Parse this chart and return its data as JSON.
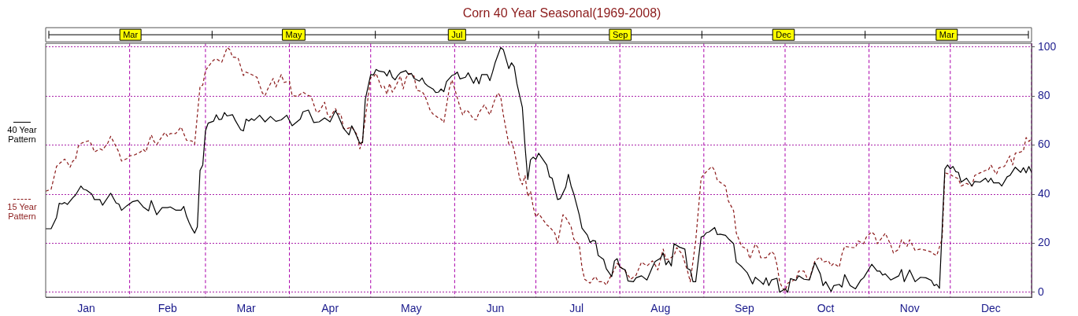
{
  "chart_data": {
    "type": "line",
    "title": "Corn 40 Year Seasonal(1969-2008)",
    "xlim": [
      "--01-01",
      "--12-31"
    ],
    "ylim": [
      -2,
      101.5
    ],
    "xticks": [
      {
        "value": "--01-16",
        "label": "Jan"
      },
      {
        "value": "--02-15",
        "label": "Feb"
      },
      {
        "value": "--03-16",
        "label": "Mar"
      },
      {
        "value": "--04-16",
        "label": "Apr"
      },
      {
        "value": "--05-16",
        "label": "May"
      },
      {
        "value": "--06-16",
        "label": "Jun"
      },
      {
        "value": "--07-16",
        "label": "Jul"
      },
      {
        "value": "--08-16",
        "label": "Aug"
      },
      {
        "value": "--09-16",
        "label": "Sep"
      },
      {
        "value": "--10-16",
        "label": "Oct"
      },
      {
        "value": "--11-16",
        "label": "Nov"
      },
      {
        "value": "--12-16",
        "label": "Dec"
      }
    ],
    "annotations": [
      "Mar",
      "May",
      "Jul",
      "Sep",
      "Dec",
      "Mar"
    ],
    "yticks": [
      0,
      20,
      40,
      60,
      80,
      100
    ],
    "grid": "y",
    "legend": "left",
    "marker": "none",
    "ref_lines": [
      {
        "axis": "x",
        "value": "--02-01",
        "color": "#aa00aa",
        "line_style": "dashed"
      },
      {
        "axis": "x",
        "value": "--03-01",
        "color": "#aa00aa",
        "line_style": "dashed"
      },
      {
        "axis": "x",
        "value": "--04-01",
        "color": "#aa00aa",
        "line_style": "dashed"
      },
      {
        "axis": "x",
        "value": "--05-01",
        "color": "#aa00aa",
        "line_style": "dashed"
      },
      {
        "axis": "x",
        "value": "--06-01",
        "color": "#aa00aa",
        "line_style": "dashed"
      },
      {
        "axis": "x",
        "value": "--07-01",
        "color": "#aa00aa",
        "line_style": "dashed"
      },
      {
        "axis": "x",
        "value": "--08-01",
        "color": "#aa00aa",
        "line_style": "dashed"
      },
      {
        "axis": "x",
        "value": "--09-01",
        "color": "#aa00aa",
        "line_style": "dashed"
      },
      {
        "axis": "x",
        "value": "--10-01",
        "color": "#aa00aa",
        "line_style": "dashed"
      },
      {
        "axis": "x",
        "value": "--11-01",
        "color": "#aa00aa",
        "line_style": "dashed"
      },
      {
        "axis": "x",
        "value": "--12-01",
        "color": "#aa00aa",
        "line_style": "dashed"
      },
      {
        "axis": "x",
        "value": "--12-31",
        "color": "#aa00aa",
        "line_style": "dashed"
      }
    ],
    "series": [
      {
        "name": "40 Year Pattern",
        "color": "#000000",
        "line_style": "solid",
        "x": [
          "--01-01",
          "--01-03",
          "--01-05",
          "--01-06",
          "--01-07",
          "--01-08",
          "--01-09",
          "--01-11",
          "--01-12",
          "--01-14",
          "--01-15",
          "--01-16",
          "--01-18",
          "--01-19",
          "--01-21",
          "--01-22",
          "--01-25",
          "--01-27",
          "--01-28",
          "--01-29",
          "--01-31",
          "--02-02",
          "--02-04",
          "--02-06",
          "--02-08",
          "--02-09",
          "--02-11",
          "--02-13",
          "--02-15",
          "--02-16",
          "--02-18",
          "--02-20",
          "--02-21",
          "--02-22",
          "--02-23",
          "--02-24",
          "--02-25",
          "--02-26",
          "--02-27",
          "--02-28",
          "--03-01",
          "--03-02",
          "--03-04",
          "--03-05",
          "--03-06",
          "--03-07",
          "--03-08",
          "--03-09",
          "--03-11",
          "--03-12",
          "--03-14",
          "--03-15",
          "--03-16",
          "--03-17",
          "--03-18",
          "--03-19",
          "--03-21",
          "--03-23",
          "--03-25",
          "--03-27",
          "--03-29",
          "--03-31",
          "--04-02",
          "--04-05",
          "--04-06",
          "--04-08",
          "--04-10",
          "--04-12",
          "--04-14",
          "--04-16",
          "--04-18",
          "--04-19",
          "--04-21",
          "--04-23",
          "--04-24",
          "--04-25",
          "--04-27",
          "--04-28",
          "--04-29",
          "--05-01",
          "--05-02",
          "--05-03",
          "--05-04",
          "--05-06",
          "--05-07",
          "--05-08",
          "--05-09",
          "--05-10",
          "--05-11",
          "--05-12",
          "--05-14",
          "--05-15",
          "--05-16",
          "--05-17",
          "--05-19",
          "--05-20",
          "--05-21",
          "--05-22",
          "--05-24",
          "--05-25",
          "--05-26",
          "--05-27",
          "--05-28",
          "--05-29",
          "--05-31",
          "--06-01",
          "--06-02",
          "--06-03",
          "--06-05",
          "--06-06",
          "--06-08",
          "--06-09",
          "--06-10",
          "--06-11",
          "--06-13",
          "--06-14",
          "--06-15",
          "--06-16",
          "--06-18",
          "--06-19",
          "--06-21",
          "--06-22",
          "--06-23",
          "--06-24",
          "--06-26",
          "--06-27",
          "--06-28",
          "--06-29",
          "--06-30",
          "--07-01",
          "--07-02",
          "--07-05",
          "--07-06",
          "--07-07",
          "--07-09",
          "--07-10",
          "--07-12",
          "--07-13",
          "--07-14",
          "--07-15",
          "--07-17",
          "--07-18",
          "--07-20",
          "--07-21",
          "--07-22",
          "--07-23",
          "--07-24",
          "--07-26",
          "--07-27",
          "--07-29",
          "--07-30",
          "--07-31",
          "--08-01",
          "--08-03",
          "--08-04",
          "--08-06",
          "--08-07",
          "--08-09",
          "--08-11",
          "--08-13",
          "--08-14",
          "--08-16",
          "--08-17",
          "--08-18",
          "--08-19",
          "--08-20",
          "--08-21",
          "--08-23",
          "--08-25",
          "--08-26",
          "--08-27",
          "--08-28",
          "--08-29",
          "--08-31",
          "--09-01",
          "--09-02",
          "--09-03",
          "--09-05",
          "--09-06",
          "--09-07",
          "--09-09",
          "--09-10",
          "--09-12",
          "--09-13",
          "--09-15",
          "--09-17",
          "--09-19",
          "--09-20",
          "--09-22",
          "--09-23",
          "--09-24",
          "--09-25",
          "--09-26",
          "--09-28",
          "--09-29",
          "--10-01",
          "--10-02",
          "--10-03",
          "--10-05",
          "--10-06",
          "--10-08",
          "--10-10",
          "--10-12",
          "--10-14",
          "--10-15",
          "--10-16",
          "--10-18",
          "--10-19",
          "--10-21",
          "--10-22",
          "--10-23",
          "--10-25",
          "--10-27",
          "--10-29",
          "--10-30",
          "--11-02",
          "--11-04",
          "--11-05",
          "--11-06",
          "--11-07",
          "--11-09",
          "--11-12",
          "--11-13",
          "--11-14",
          "--11-16",
          "--11-18",
          "--11-20",
          "--11-22",
          "--11-24",
          "--11-25",
          "--11-26",
          "--11-27",
          "--11-29",
          "--11-30",
          "--12-01",
          "--12-02",
          "--12-03",
          "--12-04",
          "--12-05",
          "--12-07",
          "--12-09",
          "--12-10",
          "--12-12",
          "--12-14",
          "--12-15",
          "--12-16",
          "--12-17",
          "--12-19",
          "--12-20",
          "--12-22",
          "--12-23",
          "--12-25",
          "--12-27",
          "--12-28",
          "--12-29",
          "--12-30",
          "--12-31"
        ],
        "values": [
          25.9,
          25.9,
          30.5,
          36.3,
          36.0,
          36.6,
          35.8,
          38.5,
          39.6,
          43.3,
          42.0,
          41.7,
          40.1,
          37.8,
          37.8,
          35.5,
          40.4,
          36.4,
          36.0,
          33.4,
          35.3,
          36.9,
          37.5,
          34.8,
          33.2,
          37.4,
          31.6,
          34.5,
          34.5,
          34.8,
          33.5,
          33.5,
          35.0,
          31.0,
          28.3,
          26.0,
          24.1,
          26.7,
          49.7,
          51.9,
          65.8,
          69.0,
          69.8,
          72.4,
          70.4,
          70.6,
          73.3,
          71.9,
          72.4,
          70.1,
          66.3,
          65.8,
          70.6,
          69.8,
          70.8,
          70.1,
          72.2,
          69.5,
          71.7,
          69.7,
          70.3,
          72.2,
          67.9,
          70.6,
          73.6,
          74.3,
          69.2,
          69.5,
          71.1,
          69.5,
          74.1,
          72.0,
          66.8,
          64.2,
          67.9,
          65.8,
          60.7,
          61.0,
          78.6,
          88.8,
          88.6,
          90.9,
          90.2,
          89.8,
          88.2,
          90.6,
          87.7,
          86.6,
          88.4,
          89.6,
          90.4,
          88.8,
          89.3,
          87.2,
          86.1,
          87.4,
          85.2,
          84.2,
          82.9,
          81.5,
          81.6,
          82.9,
          81.8,
          85.9,
          88.4,
          88.8,
          89.8,
          87.0,
          87.7,
          89.5,
          85.2,
          87.7,
          85.0,
          88.8,
          88.8,
          86.3,
          89.8,
          93.8,
          99.8,
          98.9,
          91.2,
          93.6,
          92.0,
          85.0,
          75.4,
          59.4,
          46.0,
          54.0,
          55.1,
          54.2,
          56.7,
          51.9,
          47.1,
          46.5,
          37.8,
          38.2,
          42.8,
          48.1,
          43.3,
          40.1,
          31.6,
          26.2,
          23.3,
          20.3,
          21.1,
          20.9,
          15.0,
          13.4,
          9.6,
          6.4,
          12.8,
          13.7,
          10.2,
          9.1,
          4.6,
          4.3,
          5.9,
          6.7,
          5.0,
          10.2,
          12.5,
          13.9,
          16.0,
          11.2,
          12.8,
          10.7,
          19.8,
          18.4,
          17.6,
          9.6,
          9.1,
          4.3,
          4.3,
          22.5,
          23.0,
          24.3,
          24.6,
          26.4,
          23.5,
          23.7,
          23.2,
          21.9,
          19.8,
          12.3,
          10.4,
          8.0,
          3.4,
          6.1,
          4.3,
          3.2,
          5.9,
          2.7,
          5.0,
          5.7,
          0,
          1.4,
          0,
          5.6,
          4.8,
          6.7,
          5.3,
          5.0,
          12.1,
          7.5,
          2.7,
          4.3,
          0.3,
          2.7,
          3.2,
          2.1,
          7.2,
          2.7,
          1.4,
          5.0,
          5.9,
          11.4,
          8.6,
          8.6,
          7.0,
          7.5,
          5.0,
          6.7,
          9.3,
          4.3,
          9.1,
          4.3,
          6.1,
          5.9,
          4.8,
          2.7,
          3.2,
          1.6,
          50.3,
          51.9,
          50.3,
          51.3,
          49.2,
          48.9,
          44.9,
          46.5,
          43.3,
          45.2,
          44.9,
          46.5,
          44.9,
          46.5,
          44.6,
          44.6,
          43.3,
          47.1,
          47.6,
          51.0,
          48.9,
          50.8,
          48.7,
          51.3,
          48.9
        ]
      },
      {
        "name": "15 Year Pattern",
        "color": "#8b1a1a",
        "line_style": "dashed",
        "x": [
          "--01-01",
          "--01-03",
          "--01-04",
          "--01-05",
          "--01-06",
          "--01-08",
          "--01-09",
          "--01-10",
          "--01-11",
          "--01-12",
          "--01-13",
          "--01-14",
          "--01-16",
          "--01-17",
          "--01-18",
          "--01-19",
          "--01-21",
          "--01-22",
          "--01-24",
          "--01-25",
          "--01-27",
          "--01-28",
          "--01-29",
          "--01-31",
          "--02-01",
          "--02-03",
          "--02-05",
          "--02-06",
          "--02-07",
          "--02-08",
          "--02-09",
          "--02-10",
          "--02-11",
          "--02-13",
          "--02-14",
          "--02-15",
          "--02-16",
          "--02-18",
          "--02-20",
          "--02-21",
          "--02-22",
          "--02-24",
          "--02-25",
          "--02-27",
          "--02-28",
          "--03-01",
          "--03-02",
          "--03-04",
          "--03-05",
          "--03-07",
          "--03-08",
          "--03-09",
          "--03-10",
          "--03-11",
          "--03-13",
          "--03-15",
          "--03-16",
          "--03-18",
          "--03-20",
          "--03-22",
          "--03-23",
          "--03-24",
          "--03-26",
          "--03-27",
          "--03-29",
          "--03-30",
          "--04-01",
          "--04-02",
          "--04-04",
          "--04-06",
          "--04-08",
          "--04-09",
          "--04-11",
          "--04-12",
          "--04-14",
          "--04-15",
          "--04-16",
          "--04-18",
          "--04-19",
          "--04-20",
          "--04-21",
          "--04-22",
          "--04-24",
          "--04-26",
          "--04-27",
          "--04-28",
          "--04-30",
          "--05-01",
          "--05-02",
          "--05-03",
          "--05-05",
          "--05-06",
          "--05-07",
          "--05-08",
          "--05-09",
          "--05-10",
          "--05-12",
          "--05-13",
          "--05-14",
          "--05-15",
          "--05-17",
          "--05-18",
          "--05-20",
          "--05-21",
          "--05-23",
          "--05-24",
          "--05-26",
          "--05-27",
          "--05-28",
          "--05-30",
          "--05-31",
          "--06-01",
          "--06-03",
          "--06-04",
          "--06-05",
          "--06-06",
          "--06-08",
          "--06-09",
          "--06-10",
          "--06-12",
          "--06-13",
          "--06-14",
          "--06-16",
          "--06-17",
          "--06-18",
          "--06-19",
          "--06-21",
          "--06-22",
          "--06-23",
          "--06-25",
          "--06-26",
          "--06-27",
          "--06-28",
          "--06-29",
          "--06-30",
          "--07-01",
          "--07-02",
          "--07-05",
          "--07-06",
          "--07-08",
          "--07-09",
          "--07-11",
          "--07-12",
          "--07-14",
          "--07-15",
          "--07-17",
          "--07-18",
          "--07-19",
          "--07-21",
          "--07-22",
          "--07-23",
          "--07-24",
          "--07-26",
          "--07-27",
          "--07-28",
          "--07-30",
          "--07-31",
          "--08-02",
          "--08-03",
          "--08-05",
          "--08-07",
          "--08-09",
          "--08-11",
          "--08-13",
          "--08-14",
          "--08-15",
          "--08-17",
          "--08-18",
          "--08-19",
          "--08-21",
          "--08-22",
          "--08-24",
          "--08-26",
          "--08-27",
          "--08-29",
          "--08-31",
          "--09-01",
          "--09-03",
          "--09-04",
          "--09-05",
          "--09-06",
          "--09-07",
          "--09-09",
          "--09-10",
          "--09-12",
          "--09-13",
          "--09-15",
          "--09-17",
          "--09-18",
          "--09-20",
          "--09-21",
          "--09-22",
          "--09-24",
          "--09-26",
          "--09-27",
          "--09-28",
          "--09-29",
          "--09-30",
          "--10-01",
          "--10-02",
          "--10-05",
          "--10-06",
          "--10-08",
          "--10-09",
          "--10-10",
          "--10-12",
          "--10-14",
          "--10-15",
          "--10-17",
          "--10-18",
          "--10-19",
          "--10-21",
          "--10-22",
          "--10-23",
          "--10-26",
          "--10-27",
          "--10-28",
          "--10-30",
          "--10-31",
          "--11-02",
          "--11-03",
          "--11-04",
          "--11-06",
          "--11-07",
          "--11-09",
          "--11-10",
          "--11-12",
          "--11-13",
          "--11-15",
          "--11-16",
          "--11-18",
          "--11-20",
          "--11-22",
          "--11-24",
          "--11-25",
          "--11-26",
          "--11-28",
          "--11-29",
          "--12-01",
          "--12-02",
          "--12-04",
          "--12-05",
          "--12-07",
          "--12-09",
          "--12-10",
          "--12-12",
          "--12-14",
          "--12-15",
          "--12-16",
          "--12-18",
          "--12-19",
          "--12-21",
          "--12-23",
          "--12-24",
          "--12-25",
          "--12-27",
          "--12-28",
          "--12-29",
          "--12-30",
          "--12-31"
        ],
        "values": [
          41.2,
          42.0,
          46.5,
          51.3,
          52.4,
          54.3,
          52.9,
          51.0,
          53.5,
          54.0,
          59.4,
          60.7,
          61.5,
          61.8,
          60.2,
          57.2,
          58.5,
          58.0,
          61.0,
          63.6,
          59.4,
          57.2,
          53.5,
          54.5,
          55.6,
          56.1,
          57.2,
          58.3,
          57.2,
          61.0,
          64.2,
          61.5,
          60.2,
          63.6,
          65.2,
          63.6,
          64.7,
          64.7,
          67.4,
          64.7,
          62.0,
          61.7,
          60.4,
          84.0,
          84.5,
          90.4,
          92.0,
          94.7,
          95.2,
          93.8,
          96.8,
          99.8,
          98.9,
          95.9,
          95.7,
          88.4,
          89.8,
          88.8,
          87.7,
          81.3,
          80.2,
          82.9,
          87.2,
          83.7,
          88.8,
          85.6,
          86.1,
          80.2,
          79.9,
          81.6,
          80.2,
          79.9,
          73.3,
          73.8,
          77.5,
          72.7,
          71.3,
          74.9,
          72.7,
          72.7,
          66.8,
          66.6,
          67.4,
          64.2,
          58.5,
          62.6,
          79.1,
          87.7,
          87.7,
          89.3,
          83.4,
          84.0,
          80.7,
          85.2,
          81.6,
          83.4,
          88.2,
          82.9,
          87.2,
          89.3,
          88.2,
          82.4,
          81.8,
          80.2,
          74.1,
          72.7,
          71.1,
          70.6,
          69.2,
          82.9,
          86.6,
          83.1,
          75.4,
          72.2,
          74.3,
          73.8,
          70.6,
          70.3,
          73.3,
          76.5,
          74.3,
          72.4,
          79.1,
          81.3,
          79.7,
          72.2,
          60.4,
          61.5,
          57.8,
          46.5,
          43.9,
          47.6,
          39.0,
          41.2,
          34.8,
          30.7,
          32.1,
          27.5,
          26.7,
          24.1,
          20.0,
          31.6,
          30.5,
          26.7,
          21.7,
          19.3,
          10.2,
          5.3,
          3.7,
          5.3,
          6.4,
          4.3,
          4.3,
          2.9,
          5.3,
          9.1,
          11.8,
          9.6,
          8.6,
          5.3,
          7.0,
          12.3,
          10.7,
          12.8,
          11.2,
          9.1,
          17.6,
          13.4,
          13.4,
          15.0,
          18.2,
          15.5,
          8.6,
          4.3,
          20.9,
          46.5,
          48.1,
          50.3,
          51.3,
          49.7,
          45.5,
          44.9,
          43.3,
          37.4,
          33.2,
          24.1,
          18.7,
          17.6,
          13.6,
          19.6,
          18.2,
          14.1,
          14.1,
          16.6,
          15.5,
          11.2,
          4.3,
          1.8,
          0.5,
          3.7,
          5.3,
          8.6,
          8.6,
          6.1,
          5.3,
          12.8,
          14.4,
          12.3,
          12.8,
          10.7,
          11.8,
          10.2,
          15.5,
          18.7,
          18.2,
          18.2,
          20.9,
          19.8,
          22.5,
          24.6,
          23.5,
          19.8,
          22.5,
          24.1,
          19.3,
          16.0,
          17.6,
          21.4,
          18.7,
          21.4,
          17.1,
          17.6,
          17.1,
          16.4,
          15.5,
          15.0,
          21.9,
          48.7,
          48.1,
          47.3,
          46.3,
          43.3,
          44.4,
          43.3,
          47.6,
          48.7,
          49.7,
          49.7,
          51.9,
          48.1,
          50.8,
          51.3,
          55.6,
          51.9,
          56.7,
          57.2,
          57.8,
          63.1,
          61.5,
          62.6
        ]
      }
    ]
  }
}
